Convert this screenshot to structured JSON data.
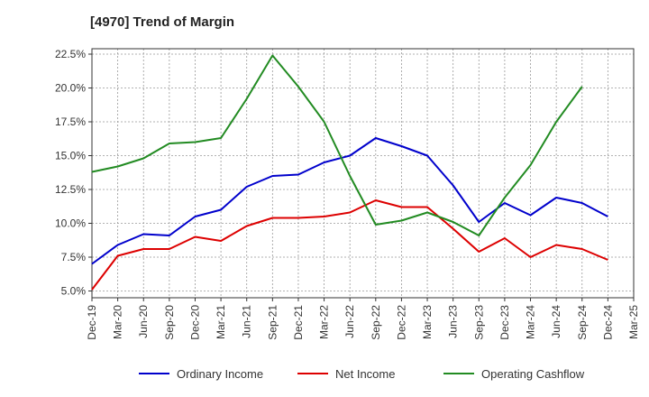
{
  "chart_data": {
    "type": "line",
    "title": "[4970]  Trend of Margin",
    "xlabel": "",
    "ylabel": "",
    "categories": [
      "Dec-19",
      "Mar-20",
      "Jun-20",
      "Sep-20",
      "Dec-20",
      "Mar-21",
      "Jun-21",
      "Sep-21",
      "Dec-21",
      "Mar-22",
      "Jun-22",
      "Sep-22",
      "Dec-22",
      "Mar-23",
      "Jun-23",
      "Sep-23",
      "Dec-23",
      "Mar-24",
      "Jun-24",
      "Sep-24",
      "Dec-24",
      "Mar-25"
    ],
    "ylim": [
      4.5,
      22.9
    ],
    "yticks": [
      5.0,
      7.5,
      10.0,
      12.5,
      15.0,
      17.5,
      20.0,
      22.5
    ],
    "ytick_labels": [
      "5.0%",
      "7.5%",
      "10.0%",
      "12.5%",
      "15.0%",
      "17.5%",
      "20.0%",
      "22.5%"
    ],
    "grid": true,
    "legend_position": "bottom",
    "series": [
      {
        "name": "Ordinary Income",
        "color": "#0000cc",
        "values": [
          7.0,
          8.4,
          9.2,
          9.1,
          10.5,
          11.0,
          12.7,
          13.5,
          13.6,
          14.5,
          15.0,
          16.3,
          15.7,
          15.0,
          12.8,
          10.1,
          11.5,
          10.6,
          11.9,
          11.5,
          10.5,
          null
        ]
      },
      {
        "name": "Net Income",
        "color": "#dd0000",
        "values": [
          5.1,
          7.6,
          8.1,
          8.1,
          9.0,
          8.7,
          9.8,
          10.4,
          10.4,
          10.5,
          10.8,
          11.7,
          11.2,
          11.2,
          9.6,
          7.9,
          8.9,
          7.5,
          8.4,
          8.1,
          7.3,
          null
        ]
      },
      {
        "name": "Operating Cashflow",
        "color": "#228b22",
        "values": [
          13.8,
          14.2,
          14.8,
          15.9,
          16.0,
          16.3,
          19.2,
          22.4,
          20.1,
          17.5,
          13.5,
          9.9,
          10.2,
          10.8,
          10.1,
          9.1,
          11.9,
          14.3,
          17.5,
          20.1,
          null,
          null
        ]
      }
    ]
  }
}
